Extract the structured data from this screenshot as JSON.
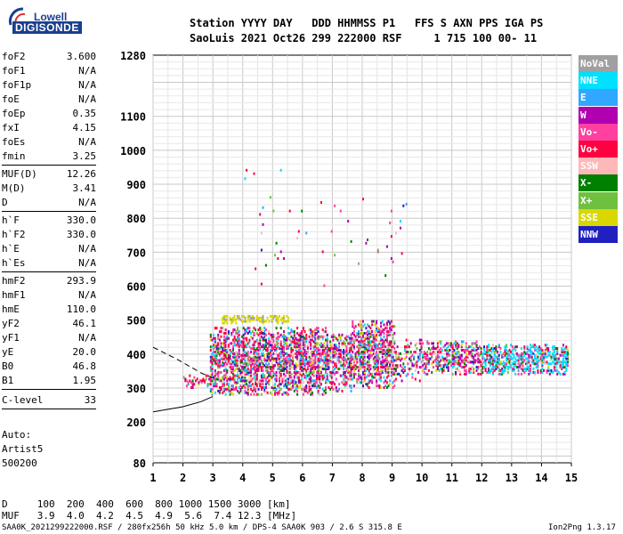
{
  "logo": {
    "top": "Lowell",
    "bottom": "DIGISONDE"
  },
  "header": {
    "labels": "Station YYYY DAY   DDD HHMMSS P1   FFS S AXN PPS IGA PS",
    "values": "SaoLuis 2021 Oct26 299 222000 RSF     1 715 100 00- 11"
  },
  "params": {
    "group1": [
      {
        "name": "foF2",
        "value": "3.600"
      },
      {
        "name": "foF1",
        "value": "N/A"
      },
      {
        "name": "foF1p",
        "value": "N/A"
      },
      {
        "name": "foE",
        "value": "N/A"
      },
      {
        "name": "foEp",
        "value": "0.35"
      },
      {
        "name": "fxI",
        "value": "4.15"
      },
      {
        "name": "foEs",
        "value": "N/A"
      },
      {
        "name": "fmin",
        "value": "3.25"
      }
    ],
    "group2": [
      {
        "name": "MUF(D)",
        "value": "12.26"
      },
      {
        "name": "M(D)",
        "value": "3.41"
      },
      {
        "name": "D",
        "value": "N/A"
      }
    ],
    "group3": [
      {
        "name": "h`F",
        "value": "330.0"
      },
      {
        "name": "h`F2",
        "value": "330.0"
      },
      {
        "name": "h`E",
        "value": "N/A"
      },
      {
        "name": "h`Es",
        "value": "N/A"
      }
    ],
    "group4": [
      {
        "name": "hmF2",
        "value": "293.9"
      },
      {
        "name": "hmF1",
        "value": "N/A"
      },
      {
        "name": "hmE",
        "value": "110.0"
      },
      {
        "name": "yF2",
        "value": "46.1"
      },
      {
        "name": "yF1",
        "value": "N/A"
      },
      {
        "name": "yE",
        "value": "20.0"
      },
      {
        "name": "B0",
        "value": "46.8"
      },
      {
        "name": "B1",
        "value": "1.95"
      }
    ],
    "clevel": {
      "name": "C-level",
      "value": "33"
    }
  },
  "scaling": {
    "mode": "Auto:",
    "program": "Artist5",
    "code": "500200"
  },
  "legend": [
    {
      "label": "NoVal",
      "color": "#a0a0a0"
    },
    {
      "label": "NNE",
      "color": "#00e0ff"
    },
    {
      "label": "E",
      "color": "#30a8ff"
    },
    {
      "label": "W",
      "color": "#b000b0"
    },
    {
      "label": "Vo-",
      "color": "#ff40a0"
    },
    {
      "label": "Vo+",
      "color": "#ff0040"
    },
    {
      "label": "SSW",
      "color": "#ffb8b8"
    },
    {
      "label": "X-",
      "color": "#008000"
    },
    {
      "label": "X+",
      "color": "#70c040"
    },
    {
      "label": "SSE",
      "color": "#d8d800"
    },
    {
      "label": "NNW",
      "color": "#2020c0"
    }
  ],
  "muf_table": {
    "d_row": "D     100  200  400  600  800 1000 1500 3000 [km]",
    "muf_row": "MUF   3.9  4.0  4.2  4.5  4.9  5.6  7.4 12.3 [MHz]"
  },
  "footer": {
    "text": "SAA0K_2021299222000.RSF / 280fx256h 50 kHz 5.0 km / DPS-4 SAA0K 903 / 2.6 S 315.8 E",
    "version": "Ion2Png 1.3.17"
  },
  "chart_data": {
    "type": "scatter",
    "title": "",
    "xlabel": "",
    "ylabel": "",
    "xlim": [
      1,
      15
    ],
    "ylim": [
      80,
      1280
    ],
    "x_ticks": [
      "1",
      "2",
      "3",
      "4",
      "5",
      "6",
      "7",
      "8",
      "9",
      "10",
      "11",
      "12",
      "13",
      "14",
      "15"
    ],
    "y_ticks": [
      {
        "value": 80,
        "label": "80"
      },
      {
        "value": 200,
        "label": "200"
      },
      {
        "value": 300,
        "label": "300"
      },
      {
        "value": 400,
        "label": "400"
      },
      {
        "value": 500,
        "label": "500"
      },
      {
        "value": 600,
        "label": "600"
      },
      {
        "value": 700,
        "label": "700"
      },
      {
        "value": 800,
        "label": "800"
      },
      {
        "value": 900,
        "label": "900"
      },
      {
        "value": 1000,
        "label": "1000"
      },
      {
        "value": 1100,
        "label": "1100"
      },
      {
        "value": 1280,
        "label": "1280"
      }
    ],
    "grid": true,
    "echo_regions": [
      {
        "name": "lower-start",
        "x_range": [
          2.0,
          2.9
        ],
        "h_range": [
          300,
          340
        ],
        "density": 0.35
      },
      {
        "name": "main-F-trace",
        "x_range": [
          2.9,
          6.8
        ],
        "h_range": [
          280,
          480
        ],
        "density": 0.55
      },
      {
        "name": "band-7",
        "x_range": [
          6.8,
          7.6
        ],
        "h_range": [
          290,
          460
        ],
        "density": 0.45
      },
      {
        "name": "band-8-9",
        "x_range": [
          7.6,
          9.1
        ],
        "h_range": [
          300,
          500
        ],
        "density": 0.5
      },
      {
        "name": "band-9-10",
        "x_range": [
          9.1,
          10.0
        ],
        "h_range": [
          320,
          450
        ],
        "density": 0.3
      },
      {
        "name": "band-10-12",
        "x_range": [
          10.0,
          12.0
        ],
        "h_range": [
          340,
          440
        ],
        "density": 0.45
      },
      {
        "name": "band-12-15",
        "x_range": [
          12.0,
          14.9
        ],
        "h_range": [
          340,
          430
        ],
        "density": 0.55
      },
      {
        "name": "yellow-trace",
        "x_range": [
          3.3,
          5.5
        ],
        "h_range": [
          490,
          515
        ],
        "density": 0.5
      },
      {
        "name": "sparse-high",
        "x_range": [
          3.8,
          9.5
        ],
        "h_range": [
          600,
          950
        ],
        "density": 0.01
      }
    ],
    "lines": [
      {
        "name": "solid-profile",
        "style": "solid",
        "points": [
          [
            1.0,
            230
          ],
          [
            2.0,
            245
          ],
          [
            2.6,
            260
          ],
          [
            3.0,
            275
          ]
        ]
      },
      {
        "name": "dashed-profile",
        "style": "dashed",
        "points": [
          [
            1.0,
            420
          ],
          [
            1.8,
            385
          ],
          [
            2.6,
            345
          ],
          [
            3.0,
            330
          ]
        ]
      }
    ],
    "muf_table": {
      "D_km": [
        100,
        200,
        400,
        600,
        800,
        1000,
        1500,
        3000
      ],
      "MUF_MHz": [
        3.9,
        4.0,
        4.2,
        4.5,
        4.9,
        5.6,
        7.4,
        12.3
      ]
    }
  }
}
